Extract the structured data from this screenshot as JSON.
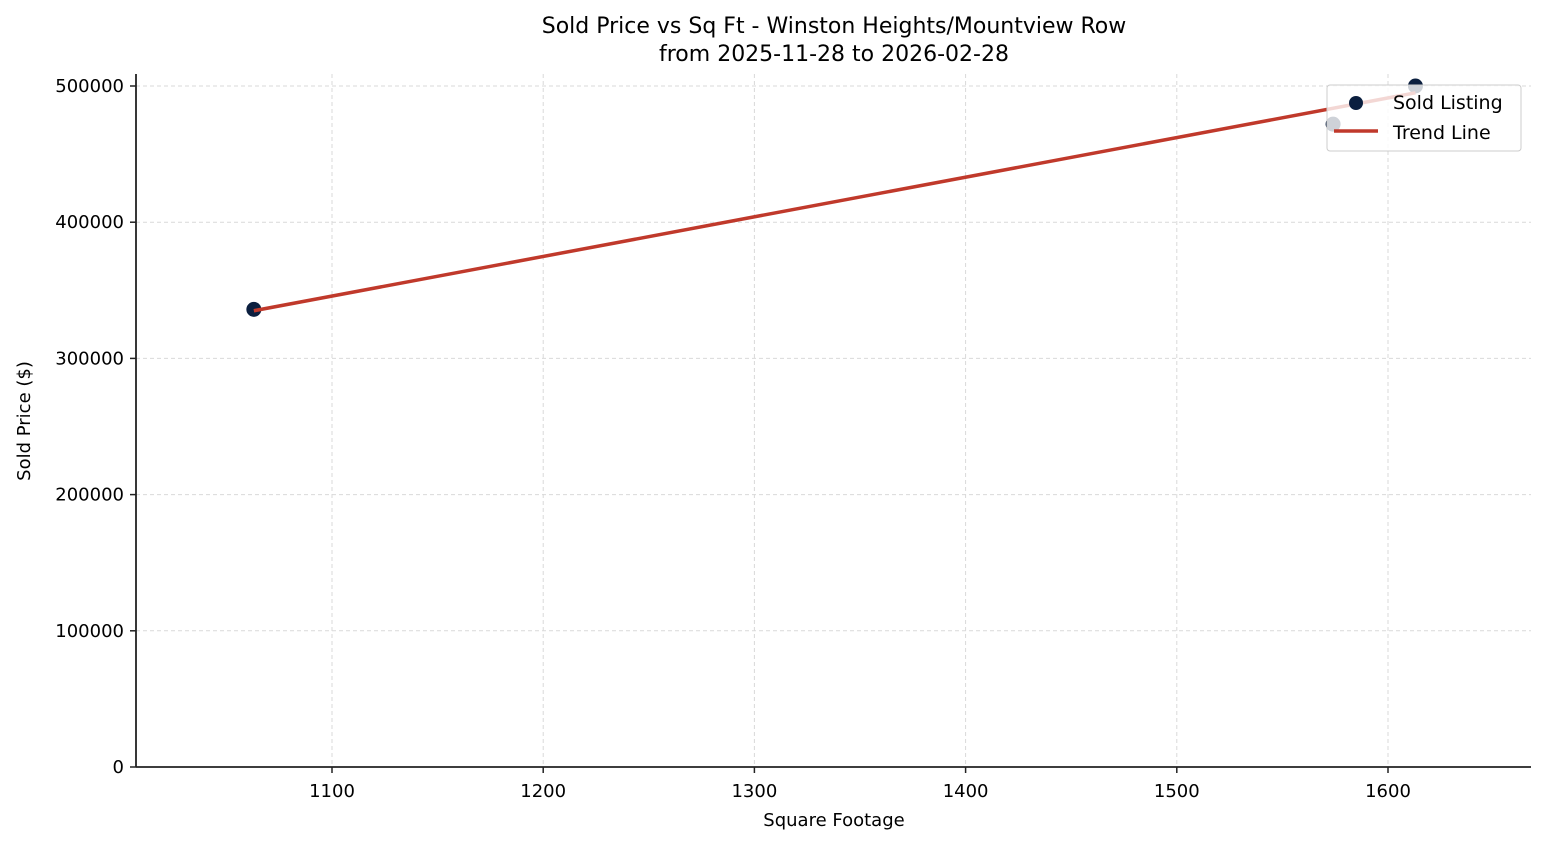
{
  "chart_data": {
    "type": "scatter",
    "title": "Sold Price vs Sq Ft - Winston Heights/Mountview Row",
    "subtitle": "from 2025-11-28 to 2026-02-28",
    "xlabel": "Square Footage",
    "ylabel": "Sold Price ($)",
    "xlim": [
      1010,
      1667
    ],
    "ylim": [
      0,
      508000
    ],
    "xticks": [
      1100,
      1200,
      1300,
      1400,
      1500,
      1600
    ],
    "yticks": [
      0,
      100000,
      200000,
      300000,
      400000,
      500000
    ],
    "grid": true,
    "legend_position": "upper right",
    "series": [
      {
        "name": "Sold Listing",
        "kind": "scatter",
        "color": "#0b1f3f",
        "points": [
          {
            "x": 1063,
            "y": 336000
          },
          {
            "x": 1574,
            "y": 472000
          },
          {
            "x": 1613,
            "y": 500000
          }
        ]
      },
      {
        "name": "Trend Line",
        "kind": "line",
        "color": "#c0392b",
        "points": [
          {
            "x": 1063,
            "y": 335000
          },
          {
            "x": 1613,
            "y": 495000
          }
        ]
      }
    ]
  },
  "legend": {
    "items": [
      {
        "label": "Sold Listing"
      },
      {
        "label": "Trend Line"
      }
    ]
  }
}
